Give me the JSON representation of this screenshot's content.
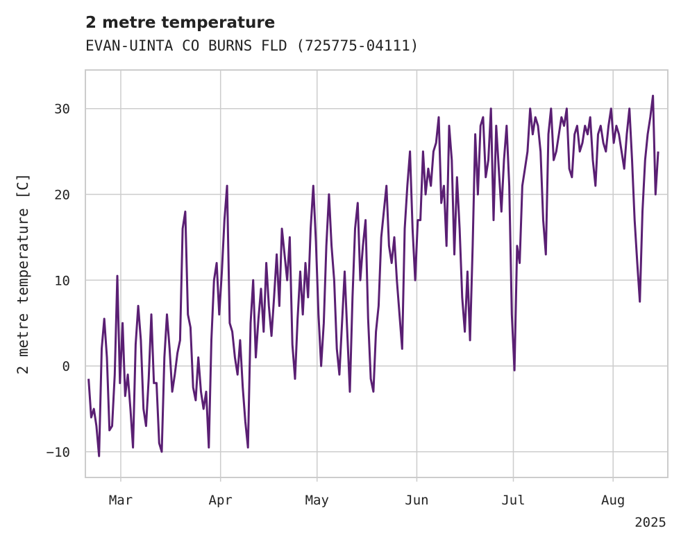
{
  "chart_data": {
    "type": "line",
    "title": "2 metre temperature",
    "subtitle": "EVAN-UINTA CO BURNS FLD (725775-04111)",
    "xlabel": "",
    "ylabel": "2 metre temperature [C]",
    "x_start": "2025-02-19",
    "x_end": "2025-08-15",
    "xlim": [
      "2025-02-18",
      "2025-08-18"
    ],
    "ylim": [
      -13,
      34.5
    ],
    "yticks": [
      -10,
      0,
      10,
      20,
      30
    ],
    "ytick_labels": [
      "−10",
      "0",
      "10",
      "20",
      "30"
    ],
    "xticks": [
      {
        "date": "2025-03-01",
        "label": "Mar"
      },
      {
        "date": "2025-04-01",
        "label": "Apr"
      },
      {
        "date": "2025-05-01",
        "label": "May"
      },
      {
        "date": "2025-06-01",
        "label": "Jun"
      },
      {
        "date": "2025-07-01",
        "label": "Jul"
      },
      {
        "date": "2025-08-01",
        "label": "Aug"
      }
    ],
    "x_offset_label": "2025",
    "grid": true,
    "series": [
      {
        "color": "#5a1f73",
        "values": [
          -1.5,
          -6.0,
          -5.0,
          -7.0,
          -10.5,
          2.0,
          5.5,
          1.0,
          -7.5,
          -7.0,
          -1.0,
          10.5,
          -2.0,
          5.0,
          -3.5,
          -1.0,
          -5.0,
          -9.5,
          2.5,
          7.0,
          3.0,
          -5.0,
          -7.0,
          -1.5,
          6.0,
          -2.0,
          -2.0,
          -9.0,
          -10.0,
          1.0,
          6.0,
          2.0,
          -3.0,
          -1.0,
          1.5,
          3.0,
          16.0,
          18.0,
          6.0,
          4.5,
          -2.5,
          -4.0,
          1.0,
          -3.0,
          -5.0,
          -3.0,
          -9.5,
          3.0,
          10.0,
          12.0,
          6.0,
          11.0,
          17.0,
          21.0,
          5.0,
          4.0,
          1.0,
          -1.0,
          3.0,
          -2.5,
          -6.5,
          -9.5,
          5.0,
          10.0,
          1.0,
          5.5,
          9.0,
          4.0,
          12.0,
          7.0,
          3.5,
          8.0,
          13.0,
          7.0,
          16.0,
          13.0,
          10.0,
          15.0,
          2.5,
          -1.5,
          5.5,
          11.0,
          6.0,
          12.0,
          8.0,
          16.0,
          21.0,
          14.5,
          6.0,
          0.0,
          5.0,
          14.0,
          20.0,
          14.0,
          10.0,
          2.0,
          -1.0,
          5.0,
          11.0,
          4.0,
          -3.0,
          8.0,
          16.0,
          19.0,
          10.0,
          14.0,
          17.0,
          5.5,
          -1.5,
          -3.0,
          4.0,
          7.0,
          15.0,
          18.0,
          21.0,
          14.0,
          12.0,
          15.0,
          10.0,
          6.0,
          2.0,
          16.0,
          21.0,
          25.0,
          16.0,
          10.0,
          17.0,
          17.0,
          25.0,
          20.0,
          23.0,
          21.0,
          25.0,
          26.0,
          29.0,
          19.0,
          21.0,
          14.0,
          28.0,
          24.0,
          13.0,
          22.0,
          16.0,
          8.0,
          4.0,
          11.0,
          3.0,
          14.0,
          27.0,
          20.0,
          28.0,
          29.0,
          22.0,
          24.0,
          30.0,
          17.0,
          28.0,
          23.0,
          18.0,
          24.0,
          28.0,
          21.0,
          6.0,
          -0.5,
          14.0,
          12.0,
          21.0,
          23.0,
          25.0,
          30.0,
          27.0,
          29.0,
          28.0,
          25.0,
          17.0,
          13.0,
          27.0,
          30.0,
          24.0,
          25.0,
          27.0,
          29.0,
          28.0,
          30.0,
          23.0,
          22.0,
          27.0,
          28.0,
          25.0,
          26.0,
          28.0,
          27.0,
          29.0,
          24.0,
          21.0,
          27.0,
          28.0,
          26.0,
          25.0,
          28.0,
          30.0,
          26.0,
          28.0,
          27.0,
          25.0,
          23.0,
          27.0,
          30.0,
          24.0,
          17.0,
          12.0,
          7.5,
          18.0,
          24.0,
          27.0,
          29.0,
          31.5,
          20.0,
          25.0
        ]
      }
    ]
  }
}
